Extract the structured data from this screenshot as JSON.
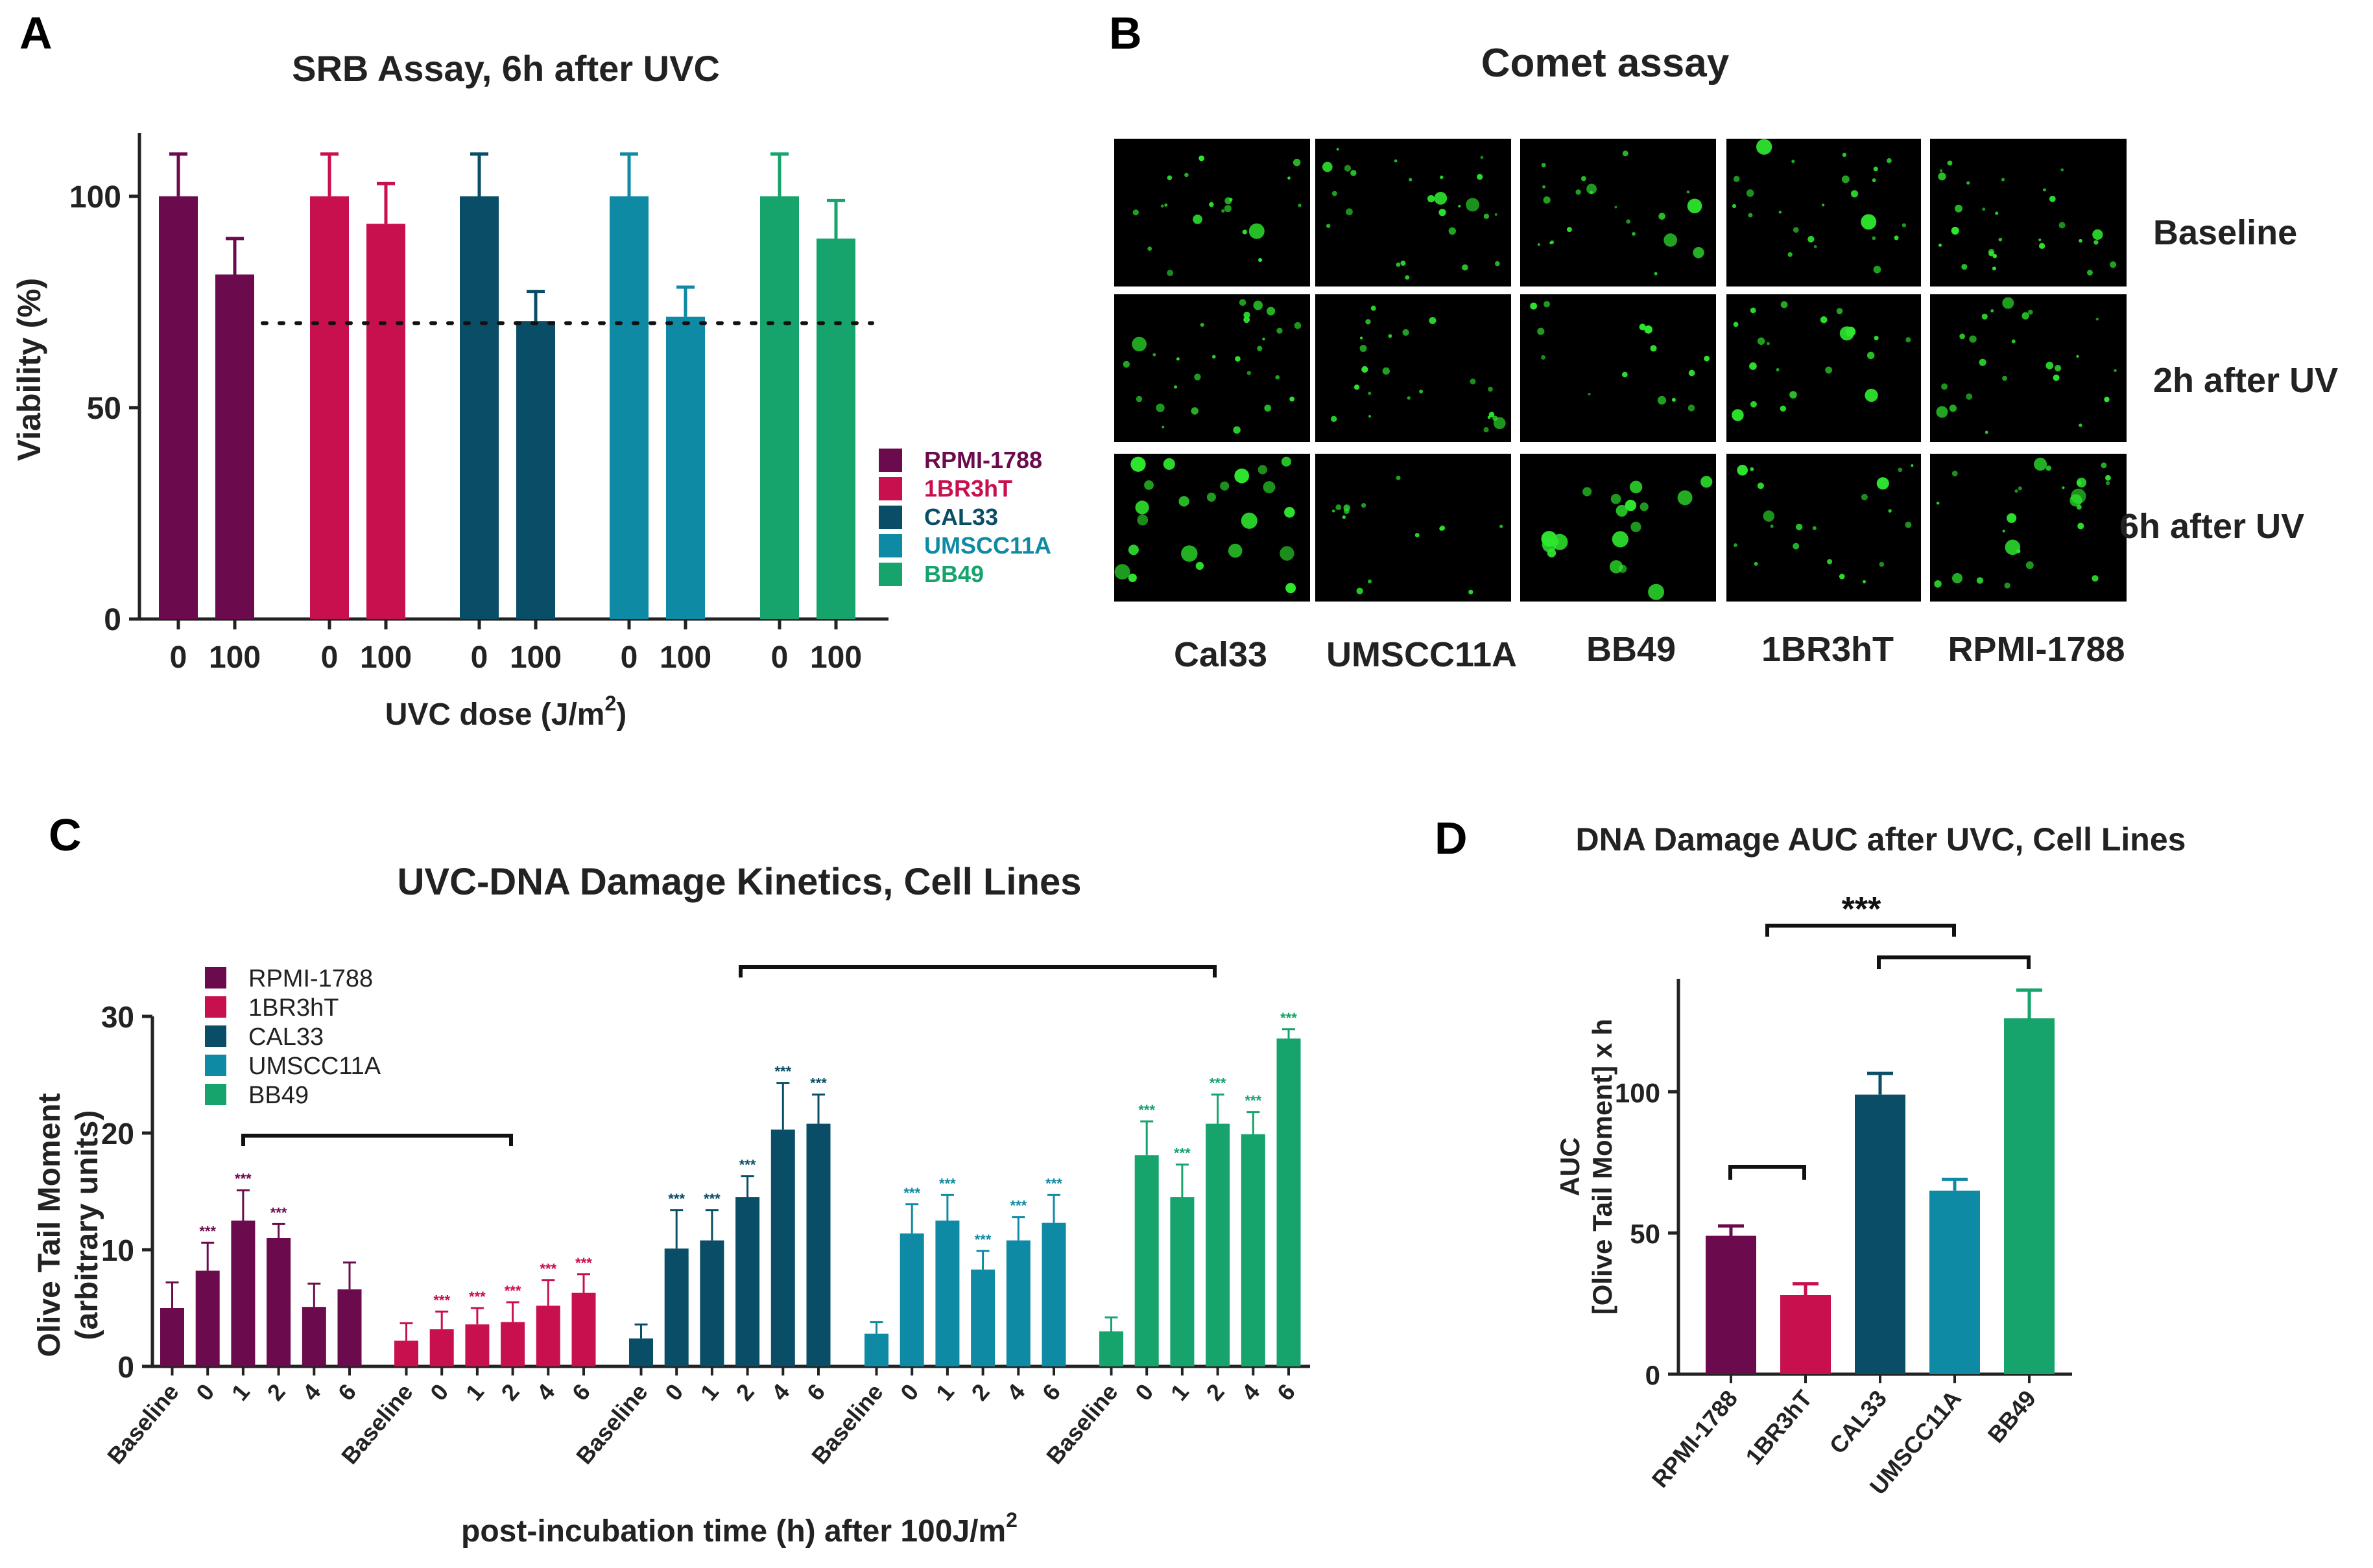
{
  "colors": {
    "RPMI-1788": "#6b0a4c",
    "1BR3hT": "#c8104f",
    "CAL33": "#0a4d66",
    "UMSCC11A": "#0f8aa4",
    "BB49": "#16a36c",
    "comet_bg": "#000000",
    "comet_spot": "#2ee62e"
  },
  "panels": {
    "A": {
      "letter": "A"
    },
    "B": {
      "letter": "B",
      "title": "Comet assay",
      "rows": [
        "Baseline",
        "2h after UV",
        "6h after UV"
      ],
      "columns": [
        "Cal33",
        "UMSCC11A",
        "BB49",
        "1BR3hT",
        "RPMI-1788"
      ]
    },
    "C": {
      "letter": "C"
    },
    "D": {
      "letter": "D",
      "bracket_label": "***"
    }
  },
  "chart_data": [
    {
      "id": "A",
      "type": "bar",
      "title": "SRB Assay, 6h after UVC",
      "xlabel": "UVC dose (J/m",
      "xlabel_sup": "2",
      "xlabel_end": ")",
      "ylabel": "Viability (%)",
      "ylim": [
        0,
        115
      ],
      "yticks": [
        0,
        50,
        100
      ],
      "reference_line": 70,
      "legend_position": "right",
      "categories": [
        "0",
        "100"
      ],
      "series": [
        {
          "name": "RPMI-1788",
          "values": [
            100,
            81.5
          ],
          "errors": [
            10,
            8.5
          ]
        },
        {
          "name": "1BR3hT",
          "values": [
            100,
            93.5
          ],
          "errors": [
            10,
            9.5
          ]
        },
        {
          "name": "CAL33",
          "values": [
            100,
            70.5
          ],
          "errors": [
            10,
            7
          ]
        },
        {
          "name": "UMSCC11A",
          "values": [
            100,
            71.5
          ],
          "errors": [
            10,
            7
          ]
        },
        {
          "name": "BB49",
          "values": [
            100,
            90
          ],
          "errors": [
            10,
            9
          ]
        }
      ]
    },
    {
      "id": "C",
      "type": "bar",
      "title": "UVC-DNA Damage Kinetics, Cell Lines",
      "xlabel": "post-incubation time (h) after 100J/m",
      "xlabel_sup": "2",
      "ylabel": "Olive Tail Moment",
      "ylabel2": "(arbitrary units)",
      "ylim": [
        0,
        30
      ],
      "yticks": [
        0,
        10,
        20,
        30
      ],
      "legend_position": "top-left",
      "categories": [
        "Baseline",
        "0",
        "1",
        "2",
        "4",
        "6"
      ],
      "significance": "***",
      "series": [
        {
          "name": "RPMI-1788",
          "values": [
            5,
            8.2,
            12.5,
            11,
            5.1,
            6.6
          ],
          "errors": [
            2.2,
            2.4,
            2.6,
            1.2,
            2,
            2.3
          ],
          "stars": [
            false,
            true,
            true,
            true,
            false,
            false
          ]
        },
        {
          "name": "1BR3hT",
          "values": [
            2.2,
            3.2,
            3.6,
            3.8,
            5.2,
            6.3
          ],
          "errors": [
            1.5,
            1.5,
            1.4,
            1.7,
            2.2,
            1.6
          ],
          "stars": [
            false,
            true,
            true,
            true,
            true,
            true
          ]
        },
        {
          "name": "CAL33",
          "values": [
            2.4,
            10.1,
            10.8,
            14.5,
            20.3,
            20.8
          ],
          "errors": [
            1.2,
            3.3,
            2.6,
            1.8,
            4,
            2.5
          ],
          "stars": [
            false,
            true,
            true,
            true,
            true,
            true
          ]
        },
        {
          "name": "UMSCC11A",
          "values": [
            2.8,
            11.4,
            12.5,
            8.3,
            10.8,
            12.3
          ],
          "errors": [
            1,
            2.5,
            2.2,
            1.6,
            2,
            2.4
          ],
          "stars": [
            false,
            true,
            true,
            true,
            true,
            true
          ]
        },
        {
          "name": "BB49",
          "values": [
            3,
            18.1,
            14.5,
            20.8,
            19.9,
            28.1
          ],
          "errors": [
            1.2,
            2.9,
            2.8,
            2.5,
            1.9,
            0.8
          ],
          "stars": [
            false,
            true,
            true,
            true,
            true,
            true
          ]
        }
      ]
    },
    {
      "id": "D",
      "type": "bar",
      "title": "DNA Damage AUC after UVC, Cell Lines",
      "ylabel": "AUC",
      "ylabel2": "[Olive Tail Moment] x h",
      "ylim": [
        0,
        140
      ],
      "yticks": [
        0,
        50,
        100
      ],
      "categories": [
        "RPMI-1788",
        "1BR3hT",
        "CAL33",
        "UMSCC11A",
        "BB49"
      ],
      "values": [
        49,
        28,
        99,
        65,
        126
      ],
      "errors": [
        3.5,
        4,
        7.5,
        4,
        10
      ]
    }
  ]
}
